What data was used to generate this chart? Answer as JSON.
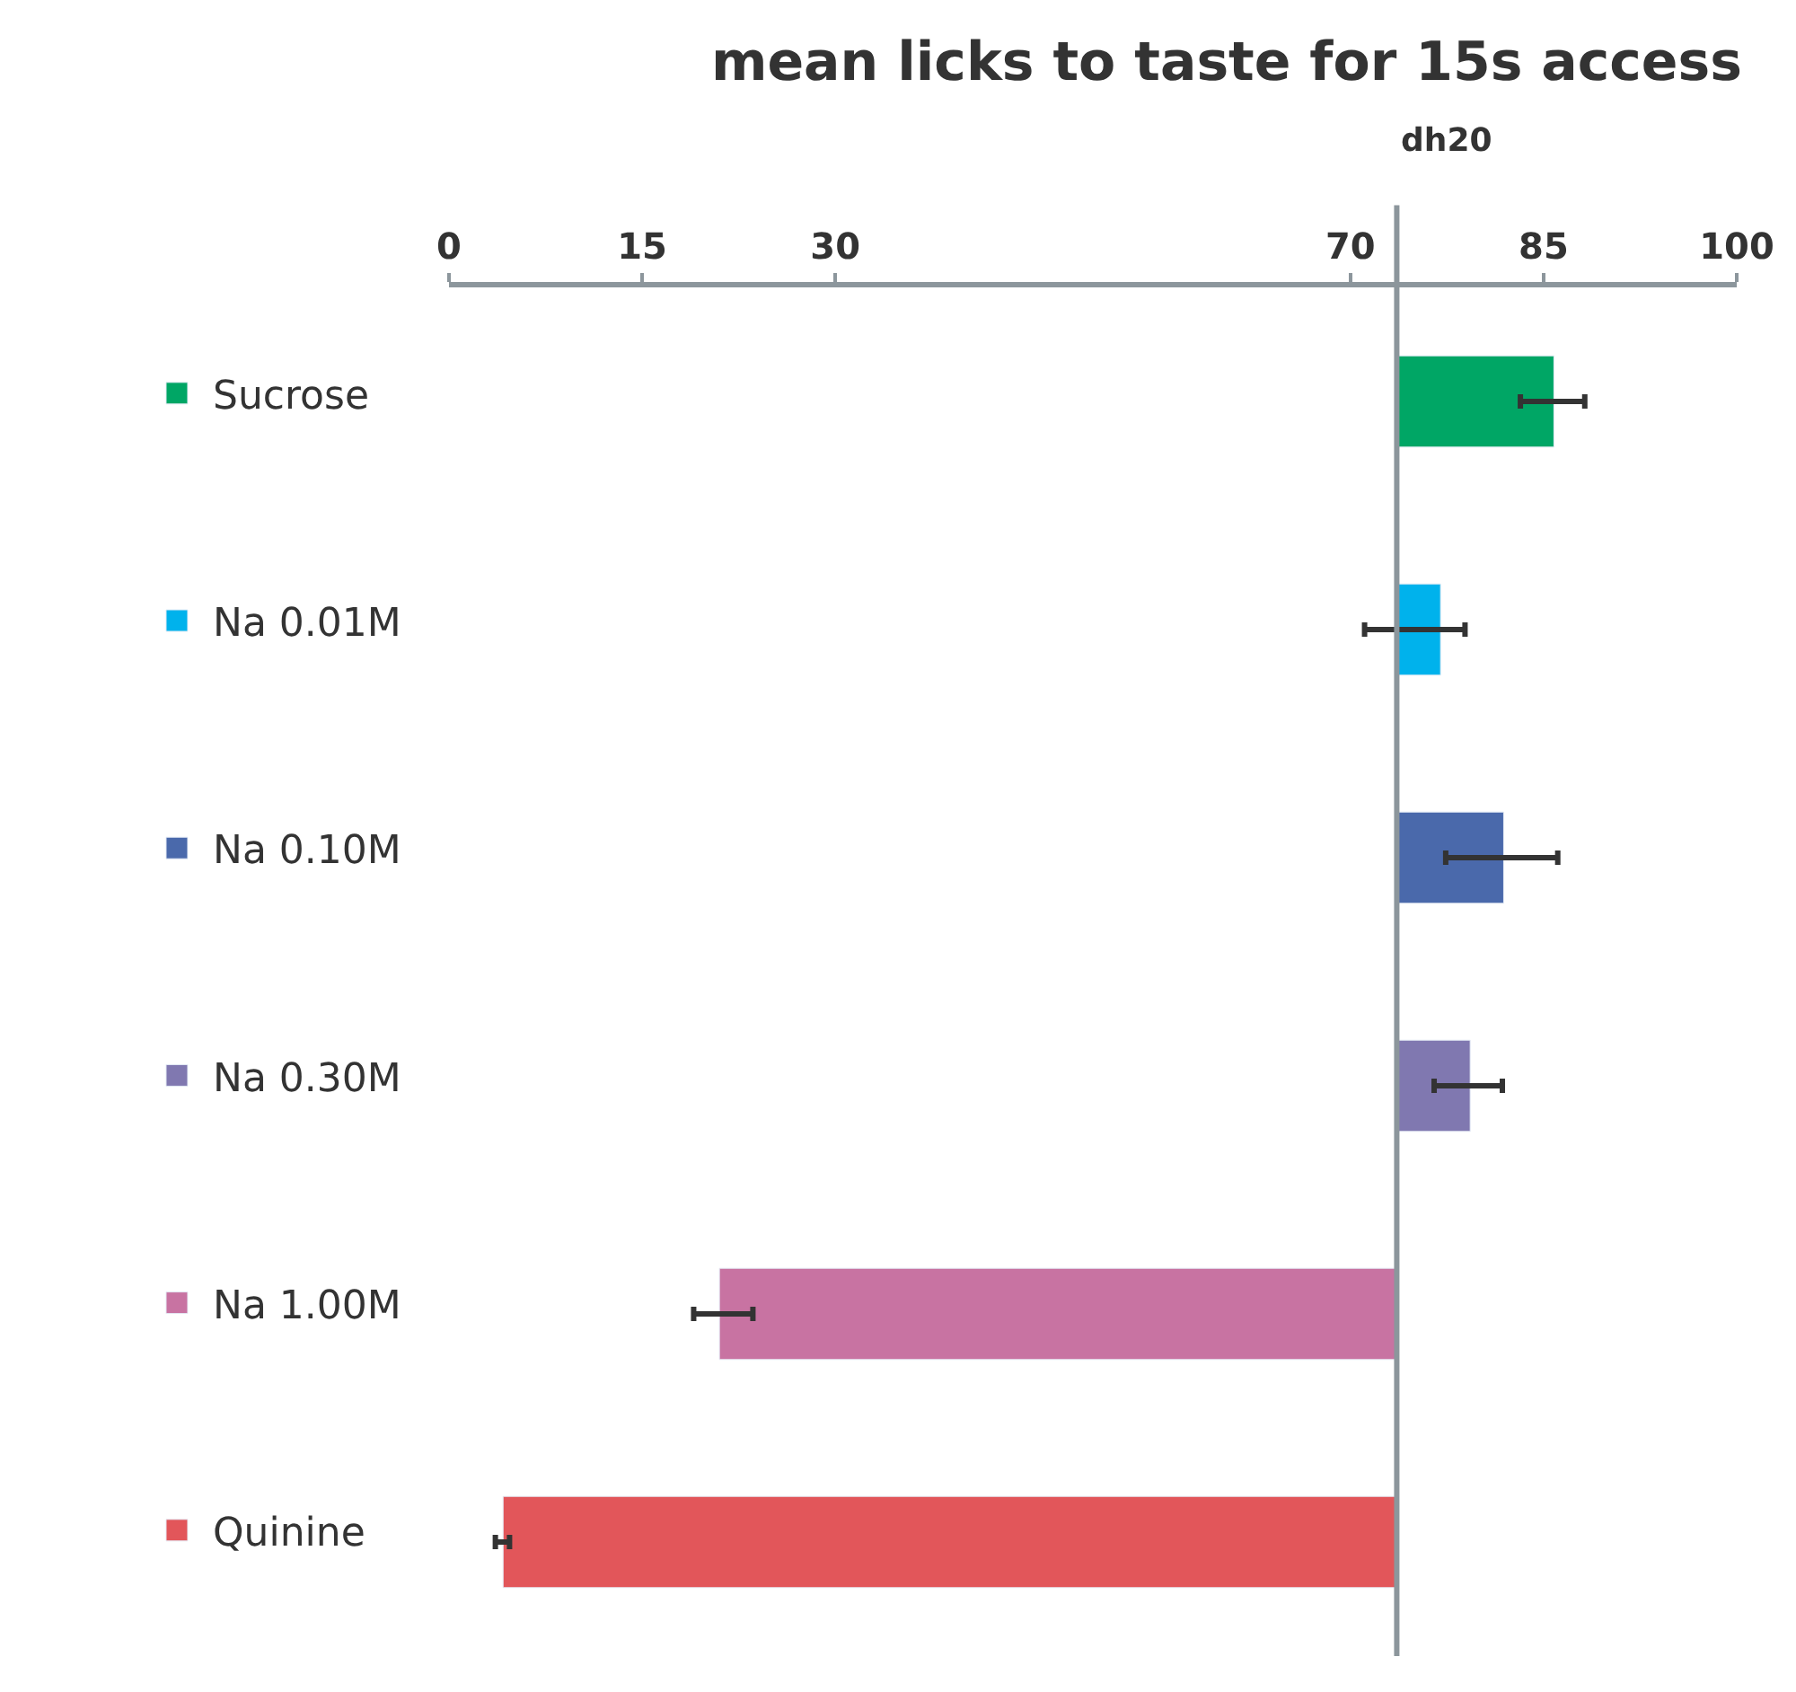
{
  "chart_data": {
    "type": "bar",
    "orientation": "horizontal",
    "title": "mean licks to taste for 15s access",
    "categories": [
      null,
      null,
      null,
      null,
      null,
      null
    ],
    "series": [
      {
        "name": "Sucrose",
        "color": "#00a665",
        "values": [
          12.2,
          null,
          null,
          null,
          null,
          null
        ],
        "base": [
          73.6,
          null,
          null,
          null,
          null,
          null
        ],
        "errors": [
          [
            83.2,
            88.2
          ],
          null,
          null,
          null,
          null,
          null
        ]
      },
      {
        "name": "Na 0.01M",
        "color": "#00b2ec",
        "values": [
          null,
          3.4,
          null,
          null,
          null,
          null
        ],
        "base": [
          null,
          73.6,
          null,
          null,
          null,
          null
        ],
        "errors": [
          null,
          [
            71.1,
            78.9
          ],
          null,
          null,
          null,
          null
        ]
      },
      {
        "name": "Na 0.10M",
        "color": "#4a69ab",
        "values": [
          null,
          null,
          8.3,
          null,
          null,
          null
        ],
        "base": [
          null,
          null,
          73.6,
          null,
          null,
          null
        ],
        "errors": [
          null,
          null,
          [
            77.4,
            86.1
          ],
          null,
          null,
          null
        ]
      },
      {
        "name": "Na 0.30M",
        "color": "#8078b0",
        "values": [
          null,
          null,
          null,
          5.7,
          null,
          null
        ],
        "base": [
          null,
          null,
          null,
          73.6,
          null,
          null
        ],
        "errors": [
          null,
          null,
          null,
          [
            76.5,
            81.8
          ],
          null,
          null
        ]
      },
      {
        "name": "Na 1.00M",
        "color": "#c873a2",
        "values": [
          null,
          null,
          null,
          null,
          -52.6,
          null
        ],
        "base": [
          null,
          null,
          null,
          null,
          73.6,
          null
        ],
        "errors": [
          null,
          null,
          null,
          null,
          [
            19.0,
            23.6
          ],
          null
        ]
      },
      {
        "name": "Quinine",
        "color": "#e2565a",
        "values": [
          null,
          null,
          null,
          null,
          null,
          -69.4
        ],
        "base": [
          null,
          null,
          null,
          null,
          null,
          73.6
        ],
        "errors": [
          null,
          null,
          null,
          null,
          null,
          [
            3.6,
            4.7
          ]
        ]
      }
    ],
    "xlim": [
      0,
      100
    ],
    "xticks": [
      0,
      15,
      30,
      70,
      85,
      100
    ],
    "ref_lines": [
      {
        "axis": "x",
        "value": 73.6,
        "label": "dh20",
        "color": "#8c969c"
      }
    ],
    "legend": "left",
    "tick_labels": "x"
  }
}
